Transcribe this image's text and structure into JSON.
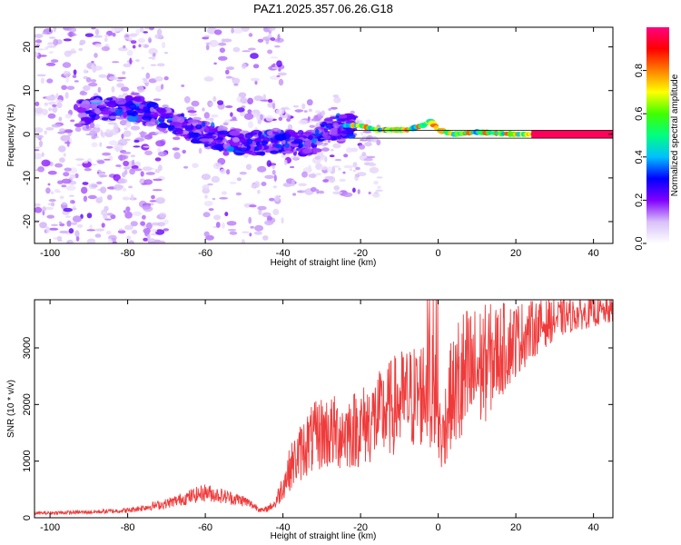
{
  "title": "PAZ1.2025.357.06.26.G18",
  "chart_data": [
    {
      "type": "heatmap",
      "xlabel": "Height of straight line (km)",
      "ylabel": "Frequency (Hz)",
      "xlim": [
        -104,
        45
      ],
      "ylim": [
        -25,
        24.5
      ],
      "xticks": [
        -100,
        -80,
        -60,
        -40,
        -20,
        0,
        20,
        40
      ],
      "yticks": [
        -20,
        -10,
        0,
        10,
        20
      ],
      "colorbar": {
        "label": "Normalized spectral amplitude",
        "range": [
          0,
          1
        ],
        "ticks": [
          0.0,
          0.2,
          0.4,
          0.6,
          0.8
        ],
        "colors": [
          "#ffffff",
          "#d8c0f8",
          "#8000ff",
          "#0000ff",
          "#00c0ff",
          "#00ff80",
          "#40ff00",
          "#ffff00",
          "#ff8000",
          "#ff0000",
          "#ff0080"
        ]
      },
      "ridge": {
        "x": [
          -92,
          -85,
          -78,
          -72,
          -66,
          -60,
          -55,
          -50,
          -45,
          -40,
          -36,
          -32,
          -28,
          -24,
          -20,
          -16,
          -12,
          -8,
          -4,
          -2,
          0,
          4,
          10,
          20,
          30,
          45
        ],
        "y": [
          5,
          6,
          6,
          4,
          2,
          0,
          -1,
          -2,
          -2,
          -1.5,
          -2,
          -2,
          1,
          2,
          2,
          1,
          1,
          1,
          2,
          3,
          1,
          0,
          0.5,
          0,
          0,
          0
        ]
      }
    },
    {
      "type": "line",
      "xlabel": "Height of straight line (km)",
      "ylabel": "SNR (10 * v/v)",
      "xlim": [
        -104,
        45
      ],
      "ylim": [
        0,
        3850
      ],
      "xticks": [
        -100,
        -80,
        -60,
        -40,
        -20,
        0,
        20,
        40
      ],
      "yticks": [
        0,
        1000,
        2000,
        3000
      ],
      "color": "#ef3b3b",
      "envelope": {
        "x": [
          -104,
          -90,
          -80,
          -70,
          -60,
          -50,
          -45,
          -42,
          -38,
          -34,
          -30,
          -25,
          -20,
          -15,
          -10,
          -5,
          -3,
          -1,
          0,
          1,
          3,
          5,
          10,
          15,
          20,
          25,
          30,
          35,
          40,
          45
        ],
        "y": [
          80,
          100,
          130,
          250,
          450,
          300,
          120,
          250,
          900,
          1300,
          1500,
          1500,
          1600,
          1800,
          2050,
          2150,
          2300,
          2200,
          1600,
          1400,
          2100,
          2300,
          2600,
          2900,
          3150,
          3350,
          3500,
          3580,
          3620,
          3650
        ]
      }
    }
  ]
}
